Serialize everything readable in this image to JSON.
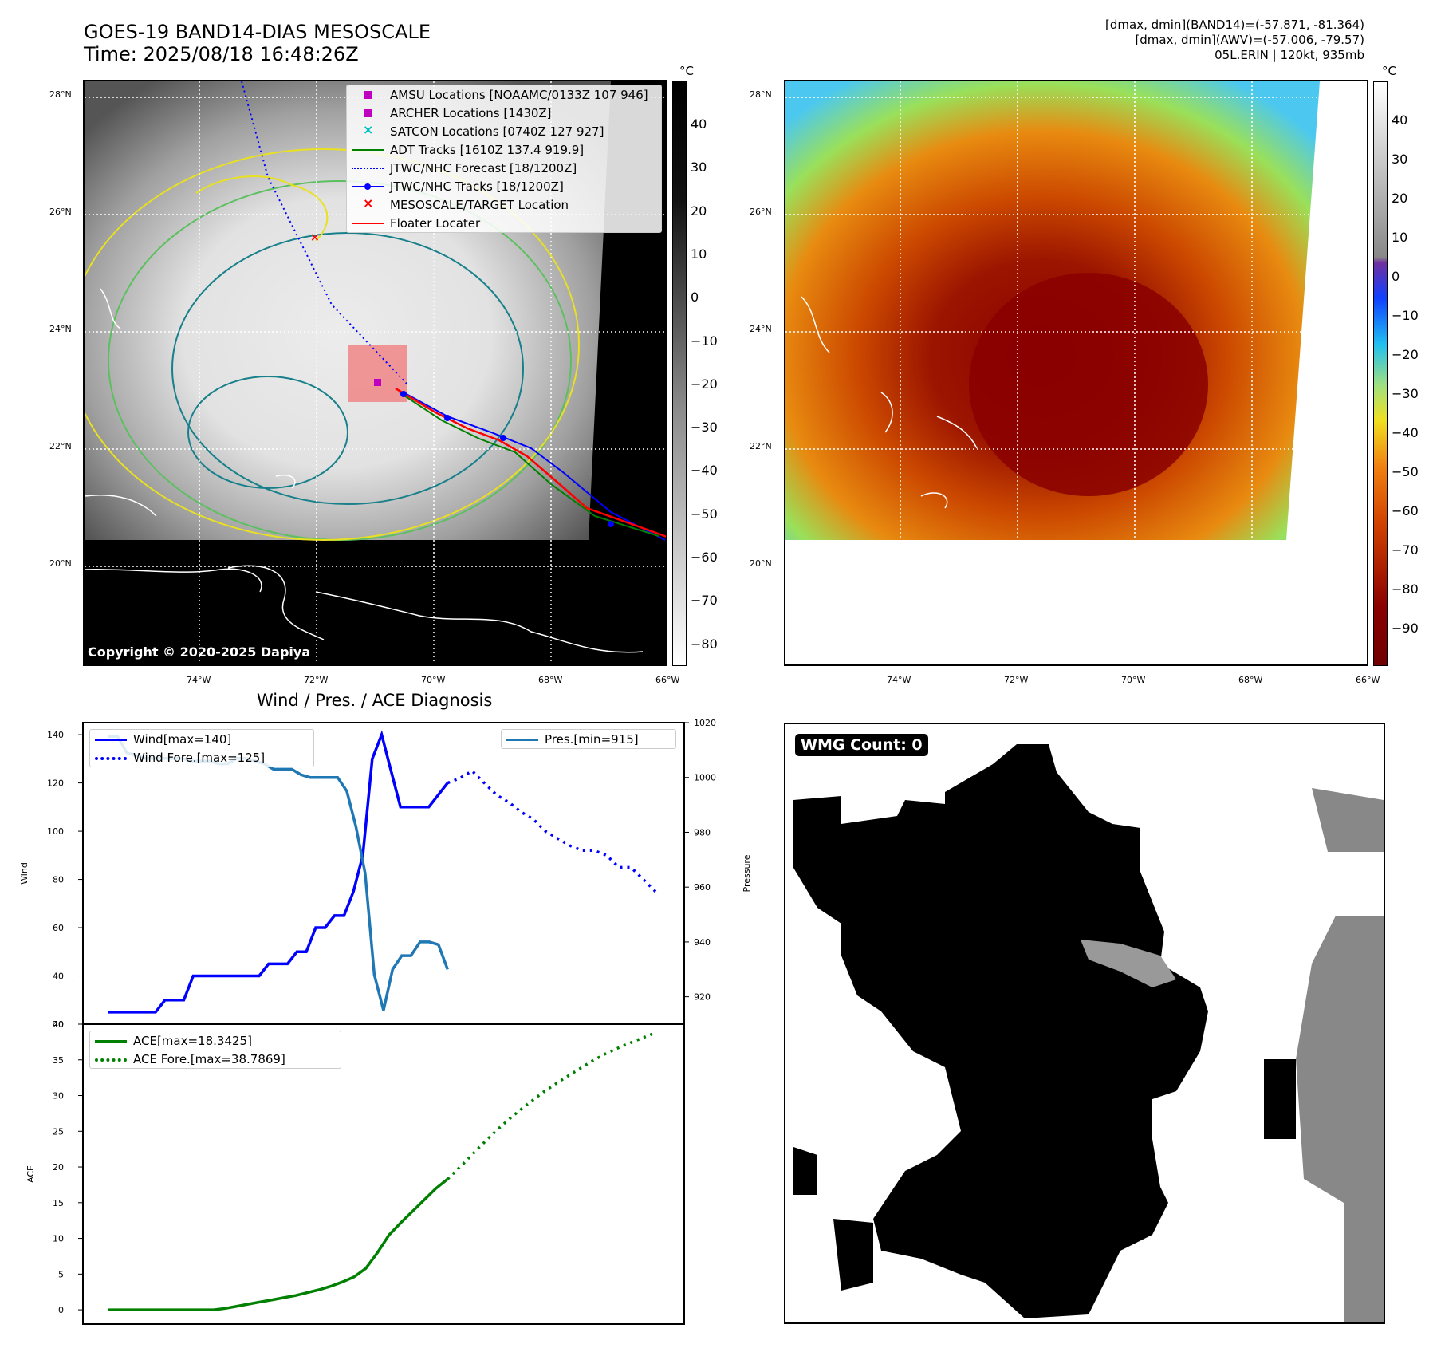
{
  "header": {
    "title_line1": "GOES-19 BAND14-DIAS MESOSCALE",
    "title_line2": "Time: 2025/08/18 16:48:26Z",
    "info_line1": "[dmax, dmin](BAND14)=(-57.871, -81.364)",
    "info_line2": "[dmax, dmin](AWV)=(-57.006, -79.57)",
    "info_line3": "05L.ERIN | 120kt, 935mb"
  },
  "map": {
    "lat_labels": [
      "28°N",
      "26°N",
      "24°N",
      "22°N",
      "20°N"
    ],
    "lon_labels": [
      "74°W",
      "72°W",
      "70°W",
      "68°W",
      "66°W"
    ],
    "copyright": "Copyright © 2020-2025 Dapiya",
    "legend": [
      {
        "label": "AMSU Locations [NOAAMC/0133Z 107 946]",
        "color": "#c000c0",
        "marker": "square"
      },
      {
        "label": "ARCHER Locations [1430Z]",
        "color": "#c000c0",
        "marker": "square"
      },
      {
        "label": "SATCON Locations [0740Z 127 927]",
        "color": "#00c0c0",
        "marker": "x"
      },
      {
        "label": "ADT Tracks [1610Z 137.4 919.9]",
        "color": "#008000",
        "marker": "line"
      },
      {
        "label": "JTWC/NHC Forecast [18/1200Z]",
        "color": "#0000ff",
        "marker": "dotted"
      },
      {
        "label": "JTWC/NHC Tracks [18/1200Z]",
        "color": "#0000ff",
        "marker": "line-dot"
      },
      {
        "label": "MESOSCALE/TARGET Location",
        "color": "#ff0000",
        "marker": "x"
      },
      {
        "label": "Floater Locater",
        "color": "#ff0000",
        "marker": "line"
      }
    ],
    "colorbar_unit": "°C",
    "gray_colorbar_ticks": [
      "40",
      "30",
      "20",
      "10",
      "0",
      "−10",
      "−20",
      "−30",
      "−40",
      "−50",
      "−60",
      "−70",
      "−80"
    ],
    "color_colorbar_ticks": [
      "40",
      "30",
      "20",
      "10",
      "0",
      "−10",
      "−20",
      "−30",
      "−40",
      "−50",
      "−60",
      "−70",
      "−80",
      "−90"
    ]
  },
  "diagnosis": {
    "title": "Wind / Pres. / ACE Diagnosis",
    "wind_ylabel": "Wind",
    "pres_ylabel": "Pressure",
    "ace_ylabel": "ACE",
    "wind_ticks": [
      "140",
      "120",
      "100",
      "80",
      "60",
      "40",
      "20"
    ],
    "pres_ticks": [
      "1020",
      "1000",
      "980",
      "960",
      "940",
      "920"
    ],
    "ace_ticks": [
      "40",
      "35",
      "30",
      "25",
      "20",
      "15",
      "10",
      "5",
      "0"
    ],
    "legend_wind": "Wind[max=140]",
    "legend_wind_fore": "Wind Fore.[max=125]",
    "legend_pres": "Pres.[min=915]",
    "legend_ace": "ACE[max=18.3425]",
    "legend_ace_fore": "ACE Fore.[max=38.7869]",
    "colors": {
      "wind": "#0000ff",
      "pres": "#1f77b4",
      "ace": "#008000"
    }
  },
  "wmg": {
    "label": "WMG Count: 0"
  },
  "chart_data": [
    {
      "type": "line",
      "title": "",
      "ylabel": "Wind",
      "ylim": [
        20,
        145
      ],
      "series": [
        {
          "name": "Wind[max=140]",
          "values": [
            25,
            25,
            25,
            25,
            25,
            25,
            30,
            30,
            30,
            40,
            40,
            40,
            40,
            40,
            40,
            40,
            40,
            45,
            45,
            45,
            50,
            50,
            60,
            60,
            65,
            65,
            75,
            90,
            130,
            140,
            125,
            110,
            110,
            110,
            110,
            115,
            120
          ]
        },
        {
          "name": "Wind Fore.[max=125]",
          "values": [
            120,
            122,
            125,
            120,
            115,
            112,
            108,
            105,
            100,
            97,
            94,
            92,
            92,
            90,
            85,
            85,
            80,
            75
          ]
        }
      ]
    },
    {
      "type": "line",
      "ylabel": "Pressure",
      "ylim": [
        910,
        1020
      ],
      "series": [
        {
          "name": "Pres.[min=915]",
          "values": [
            1015,
            1015,
            1009,
            1008,
            1007,
            1007,
            1007,
            1007,
            1007,
            1006,
            1006,
            1006,
            1005,
            1005,
            1007,
            1007,
            1006,
            1005,
            1003,
            1003,
            1003,
            1001,
            1000,
            1000,
            1000,
            1000,
            995,
            982,
            965,
            928,
            915,
            930,
            935,
            935,
            940,
            940,
            939,
            930
          ]
        }
      ]
    },
    {
      "type": "line",
      "ylabel": "ACE",
      "ylim": [
        -2,
        40
      ],
      "series": [
        {
          "name": "ACE[max=18.3425]",
          "values": [
            0,
            0,
            0,
            0,
            0,
            0,
            0,
            0,
            0,
            0,
            0.2,
            0.5,
            0.8,
            1.1,
            1.4,
            1.7,
            2.0,
            2.4,
            2.8,
            3.3,
            3.9,
            4.6,
            5.8,
            8.0,
            10.5,
            12.2,
            13.8,
            15.4,
            17.0,
            18.3
          ]
        },
        {
          "name": "ACE Fore.[max=38.7869]",
          "values": [
            18.3,
            20.5,
            22.8,
            25.0,
            27.0,
            28.8,
            30.5,
            32.0,
            33.4,
            34.8,
            36.0,
            37.0,
            37.9,
            38.8
          ]
        }
      ]
    }
  ]
}
